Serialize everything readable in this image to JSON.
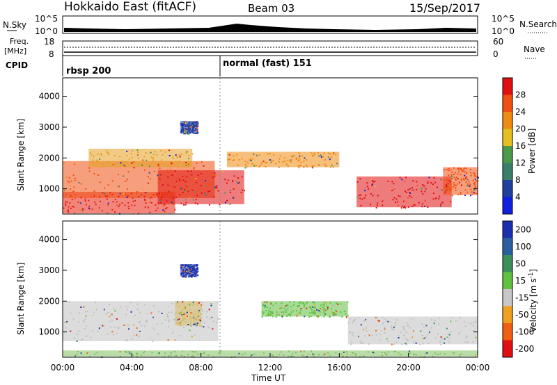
{
  "header": {
    "title": "Hokkaido East (fitACF)",
    "beam": "Beam 03",
    "date": "15/Sep/2017"
  },
  "nsky_panel": {
    "label": "N.Sky",
    "right_label": "N.Search",
    "left_ticks": [
      "10^5",
      "10^0"
    ],
    "right_ticks": [
      "10^5",
      "10^0"
    ]
  },
  "freq_panel": {
    "label_line1": "Freq.",
    "label_line2": "[MHz]",
    "left_ticks": [
      "18",
      "8"
    ],
    "right_ticks": [
      "60",
      "0"
    ],
    "right_label": "Nave"
  },
  "cpid_panel": {
    "label": "CPID",
    "segments": [
      {
        "label": "rbsp 200",
        "start": "00:00"
      },
      {
        "label": "normal (fast) 151",
        "start": "08:50"
      }
    ]
  },
  "chart_data": [
    {
      "type": "heatmap",
      "name": "power",
      "ylabel": "Slant Range [km]",
      "yticks": [
        "1000",
        "2000",
        "3000",
        "4000"
      ],
      "xticks": [],
      "colorbar_label": "Power [dB]",
      "colorbar_ticks": [
        "4",
        "8",
        "12",
        "16",
        "20",
        "24",
        "28"
      ],
      "colorbar_colors": [
        "#1020e0",
        "#2040a0",
        "#3a7f6a",
        "#4a9a4a",
        "#e6c020",
        "#f08a10",
        "#f05010",
        "#e01010"
      ],
      "regions": [
        {
          "t0": 0.0,
          "t1": 6.5,
          "r0": 200,
          "r1": 900,
          "color": "#e82010"
        },
        {
          "t0": 0.0,
          "t1": 8.8,
          "r0": 700,
          "r1": 1900,
          "color": "#f05010"
        },
        {
          "t0": 1.5,
          "t1": 7.5,
          "r0": 1700,
          "r1": 2300,
          "color": "#e6a020"
        },
        {
          "t0": 5.5,
          "t1": 10.5,
          "r0": 500,
          "r1": 1600,
          "color": "#e01010"
        },
        {
          "t0": 9.5,
          "t1": 16.0,
          "r0": 1700,
          "r1": 2200,
          "color": "#f08a10"
        },
        {
          "t0": 17.0,
          "t1": 22.5,
          "r0": 400,
          "r1": 1400,
          "color": "#e01010"
        },
        {
          "t0": 22.0,
          "t1": 24.0,
          "r0": 800,
          "r1": 1700,
          "color": "#f05010"
        },
        {
          "t0": 6.8,
          "t1": 7.8,
          "r0": 2800,
          "r1": 3200,
          "color": "#2040a0"
        }
      ]
    },
    {
      "type": "heatmap",
      "name": "velocity",
      "ylabel": "Slant Range [km]",
      "yticks": [
        "1000",
        "2000",
        "3000",
        "4000"
      ],
      "xticks": [
        "00:00",
        "04:00",
        "08:00",
        "12:00",
        "16:00",
        "20:00",
        "00:00"
      ],
      "xlabel": "Time UT",
      "colorbar_label": "Velocity [m s^-1]",
      "colorbar_ticks": [
        "200",
        "100",
        "50",
        "15",
        "-15",
        "-50",
        "-100",
        "-200"
      ],
      "colorbar_colors": [
        "#1a30b0",
        "#2a60a0",
        "#3a8f5a",
        "#60c040",
        "#c8c8c8",
        "#f0a020",
        "#f06010",
        "#e01010"
      ],
      "regions": [
        {
          "t0": 0.0,
          "t1": 9.0,
          "r0": 700,
          "r1": 2000,
          "color": "#c0c0c0"
        },
        {
          "t0": 6.5,
          "t1": 8.0,
          "r0": 1200,
          "r1": 2000,
          "color": "#d8c070"
        },
        {
          "t0": 6.8,
          "t1": 7.8,
          "r0": 2800,
          "r1": 3200,
          "color": "#1a30b0"
        },
        {
          "t0": 11.5,
          "t1": 16.5,
          "r0": 1500,
          "r1": 2000,
          "color": "#60c040"
        },
        {
          "t0": 16.5,
          "t1": 24.0,
          "r0": 600,
          "r1": 1500,
          "color": "#c0c0c0"
        },
        {
          "t0": 0.0,
          "t1": 24.0,
          "r0": 200,
          "r1": 400,
          "color": "#80c060"
        }
      ]
    }
  ]
}
